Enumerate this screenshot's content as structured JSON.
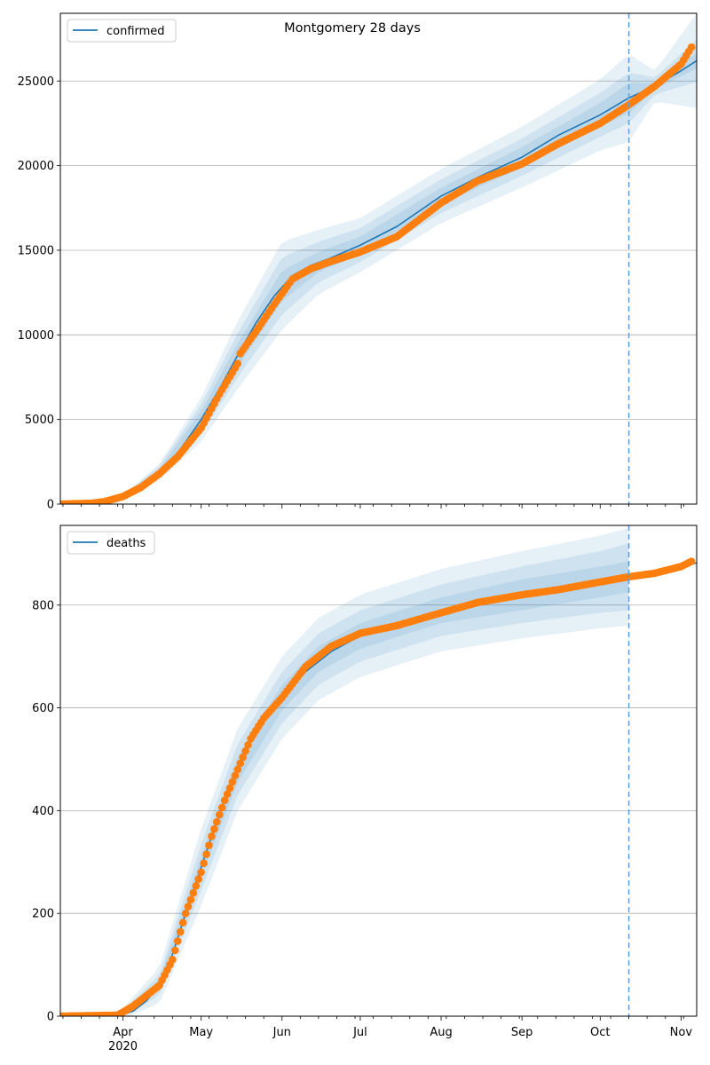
{
  "figure": {
    "title": "Montgomery 28 days"
  },
  "colors": {
    "model_line": "#1f77b4",
    "observed": "#ff7f0e",
    "band": "#1f77b4",
    "grid": "#b0b0b0",
    "cutoff_line": "#5aa0dc"
  },
  "x_axis": {
    "month_ticks": [
      "Apr",
      "May",
      "Jun",
      "Jul",
      "Aug",
      "Sep",
      "Oct",
      "Nov"
    ],
    "year_label": "2020"
  },
  "chart_data": [
    {
      "type": "line",
      "legend": "confirmed",
      "legend_position": "top-left",
      "grid": "horizontal",
      "ylim": [
        0,
        29000
      ],
      "yticks": [
        0,
        5000,
        10000,
        15000,
        20000,
        25000
      ],
      "xlim": [
        "2020-03-08",
        "2020-11-07"
      ],
      "forecast_start": "2020-10-12",
      "model": {
        "name": "confirmed",
        "x": [
          "2020-03-08",
          "2020-03-25",
          "2020-04-01",
          "2020-04-08",
          "2020-04-15",
          "2020-04-22",
          "2020-05-01",
          "2020-05-08",
          "2020-05-15",
          "2020-05-22",
          "2020-05-29",
          "2020-06-05",
          "2020-06-12",
          "2020-06-19",
          "2020-07-01",
          "2020-07-15",
          "2020-08-01",
          "2020-08-15",
          "2020-09-01",
          "2020-09-15",
          "2020-10-01",
          "2020-10-12",
          "2020-10-22",
          "2020-11-01",
          "2020-11-07"
        ],
        "y": [
          0,
          80,
          450,
          1000,
          1900,
          3000,
          5000,
          6800,
          8800,
          10700,
          12300,
          13500,
          14100,
          14500,
          15300,
          16400,
          18200,
          19300,
          20500,
          21800,
          23000,
          24000,
          24700,
          25600,
          26200
        ]
      },
      "bands": {
        "x": [
          "2020-04-01",
          "2020-04-15",
          "2020-05-01",
          "2020-05-15",
          "2020-06-01",
          "2020-06-15",
          "2020-07-01",
          "2020-08-01",
          "2020-09-01",
          "2020-10-01",
          "2020-10-12",
          "2020-10-22",
          "2020-11-07"
        ],
        "center": [
          450,
          1900,
          5000,
          8800,
          12900,
          14300,
          15300,
          18200,
          20500,
          23000,
          24000,
          24700,
          26200
        ],
        "half_widths": [
          [
            20,
            200,
            500,
            700,
            900,
            600,
            500,
            500,
            600,
            700,
            900,
            200,
            450
          ],
          [
            40,
            350,
            900,
            1300,
            1700,
            1200,
            1000,
            1000,
            1100,
            1300,
            1500,
            500,
            1250
          ],
          [
            60,
            500,
            1300,
            2000,
            2600,
            1900,
            1600,
            1600,
            1800,
            2100,
            2600,
            900,
            2800
          ]
        ]
      },
      "observed": {
        "name": "observed",
        "x": [
          "2020-03-08",
          "2020-03-20",
          "2020-03-25",
          "2020-04-01",
          "2020-04-08",
          "2020-04-15",
          "2020-04-22",
          "2020-05-01",
          "2020-05-08",
          "2020-05-15",
          "2020-05-16",
          "2020-05-22",
          "2020-05-29",
          "2020-06-05",
          "2020-06-12",
          "2020-06-19",
          "2020-07-01",
          "2020-07-15",
          "2020-08-01",
          "2020-08-15",
          "2020-09-01",
          "2020-09-15",
          "2020-10-01",
          "2020-10-12",
          "2020-10-22",
          "2020-11-01",
          "2020-11-05"
        ],
        "y": [
          0,
          50,
          150,
          450,
          1000,
          1800,
          2800,
          4500,
          6500,
          8300,
          8900,
          10200,
          11800,
          13300,
          13900,
          14300,
          14900,
          15800,
          17800,
          19100,
          20100,
          21300,
          22500,
          23600,
          24700,
          26000,
          27000
        ]
      }
    },
    {
      "type": "line",
      "legend": "deaths",
      "legend_position": "top-left",
      "grid": "horizontal",
      "ylim": [
        0,
        955
      ],
      "yticks": [
        0,
        200,
        400,
        600,
        800
      ],
      "xlim": [
        "2020-03-08",
        "2020-11-07"
      ],
      "forecast_start": "2020-10-12",
      "model": {
        "name": "deaths",
        "x": [
          "2020-03-08",
          "2020-03-30",
          "2020-04-05",
          "2020-04-10",
          "2020-04-15",
          "2020-04-20",
          "2020-04-25",
          "2020-05-01",
          "2020-05-05",
          "2020-05-10",
          "2020-05-15",
          "2020-05-20",
          "2020-05-25",
          "2020-06-01",
          "2020-06-10",
          "2020-06-20",
          "2020-07-01",
          "2020-07-15",
          "2020-08-01",
          "2020-08-15",
          "2020-09-01",
          "2020-09-15",
          "2020-10-01",
          "2020-10-12",
          "2020-10-22",
          "2020-11-01",
          "2020-11-07"
        ],
        "y": [
          0,
          0,
          10,
          30,
          60,
          120,
          200,
          290,
          350,
          420,
          480,
          540,
          580,
          620,
          670,
          710,
          740,
          760,
          790,
          805,
          820,
          830,
          845,
          855,
          862,
          875,
          882
        ]
      },
      "bands": {
        "x": [
          "2020-04-01",
          "2020-04-15",
          "2020-05-01",
          "2020-05-15",
          "2020-06-01",
          "2020-06-15",
          "2020-07-01",
          "2020-08-01",
          "2020-09-01",
          "2020-10-01",
          "2020-10-12"
        ],
        "center": [
          5,
          60,
          290,
          480,
          620,
          695,
          740,
          790,
          820,
          845,
          855
        ],
        "half_widths": [
          [
            3,
            10,
            20,
            25,
            25,
            25,
            25,
            25,
            30,
            30,
            30
          ],
          [
            6,
            20,
            45,
            50,
            50,
            50,
            50,
            50,
            55,
            60,
            65
          ],
          [
            10,
            35,
            75,
            80,
            80,
            80,
            80,
            80,
            85,
            90,
            95
          ]
        ]
      },
      "observed": {
        "name": "observed",
        "x": [
          "2020-03-08",
          "2020-03-30",
          "2020-04-05",
          "2020-04-10",
          "2020-04-15",
          "2020-04-20",
          "2020-04-25",
          "2020-05-01",
          "2020-05-05",
          "2020-05-10",
          "2020-05-15",
          "2020-05-20",
          "2020-05-25",
          "2020-06-01",
          "2020-06-10",
          "2020-06-20",
          "2020-07-01",
          "2020-07-15",
          "2020-08-01",
          "2020-08-15",
          "2020-09-01",
          "2020-09-15",
          "2020-10-01",
          "2020-10-12",
          "2020-10-22",
          "2020-11-01",
          "2020-11-05"
        ],
        "y": [
          0,
          2,
          20,
          40,
          60,
          110,
          200,
          280,
          350,
          420,
          480,
          540,
          580,
          620,
          680,
          720,
          745,
          760,
          785,
          805,
          820,
          830,
          845,
          855,
          862,
          875,
          885
        ]
      }
    }
  ]
}
